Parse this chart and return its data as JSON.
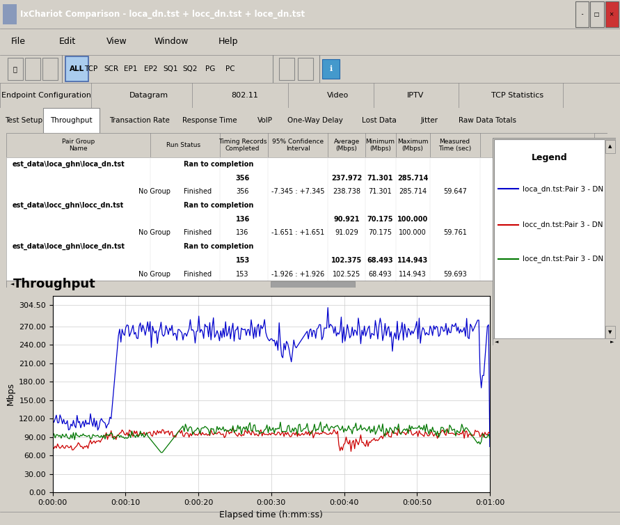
{
  "title_bar": "IxChariot Comparison - loca_dn.tst + locc_dn.tst + loce_dn.tst",
  "menu_items": [
    "File",
    "Edit",
    "View",
    "Window",
    "Help"
  ],
  "tab_buttons": [
    "ALL",
    "TCP",
    "SCR",
    "EP1",
    "EP2",
    "SQ1",
    "SQ2",
    "PG",
    "PC"
  ],
  "tab_row1": [
    "Endpoint Configuration",
    "Datagram",
    "802.11",
    "Video",
    "IPTV",
    "TCP Statistics"
  ],
  "tab_row2": [
    "Test Setup",
    "Throughput",
    "Transaction Rate",
    "Response Time",
    "VoIP",
    "One-Way Delay",
    "Lost Data",
    "Jitter",
    "Raw Data Totals"
  ],
  "chart_title": "Throughput",
  "ylabel": "Mbps",
  "xlabel": "Elapsed time (h:mm:ss)",
  "yticks": [
    0.0,
    30.0,
    60.0,
    90.0,
    120.0,
    150.0,
    180.0,
    210.0,
    240.0,
    270.0,
    304.5
  ],
  "ytick_labels": [
    "0.00",
    "30.00",
    "60.00",
    "90.00",
    "120.00",
    "150.00",
    "180.00",
    "210.00",
    "240.00",
    "270.00",
    "304.50"
  ],
  "xtick_labels": [
    "0:00:00",
    "0:00:10",
    "0:00:20",
    "0:00:30",
    "0:00:40",
    "0:00:50",
    "0:01:00"
  ],
  "legend_entries": [
    {
      "label": "loca_dn.tst:Pair 3 - DN",
      "color": "#0000CC"
    },
    {
      "label": "locc_dn.tst:Pair 3 - DN",
      "color": "#CC0000"
    },
    {
      "label": "loce_dn.tst:Pair 3 - DN",
      "color": "#007700"
    }
  ],
  "window_bg": "#D4D0C8",
  "title_bar_bg": "#4A6A9C",
  "chart_bg": "#FFFFFF",
  "grid_color": "#CCCCCC"
}
